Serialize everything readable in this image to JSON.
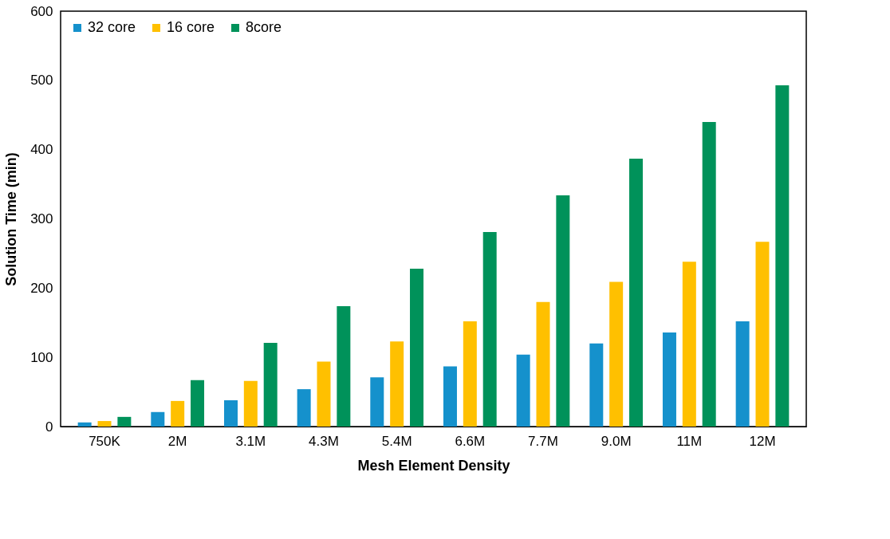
{
  "chart_data": {
    "type": "bar",
    "xlabel": "Mesh Element Density",
    "ylabel": "Solution Time (min)",
    "categories": [
      "750K",
      "2M",
      "3.1M",
      "4.3M",
      "5.4M",
      "6.6M",
      "7.7M",
      "9.0M",
      "11M",
      "12M"
    ],
    "series": [
      {
        "name": "32 core",
        "color": "#1591cc",
        "values": [
          6,
          21,
          38,
          54,
          71,
          87,
          104,
          120,
          136,
          152
        ]
      },
      {
        "name": "16 core",
        "color": "#ffc000",
        "values": [
          8,
          37,
          66,
          94,
          123,
          152,
          180,
          209,
          238,
          267
        ]
      },
      {
        "name": "8core",
        "color": "#00925a",
        "values": [
          14,
          67,
          121,
          174,
          228,
          281,
          334,
          387,
          440,
          493
        ]
      }
    ],
    "ylim": [
      0,
      600
    ],
    "yticks": [
      0,
      100,
      200,
      300,
      400,
      500,
      600
    ],
    "grid": false,
    "legend": "top left"
  }
}
